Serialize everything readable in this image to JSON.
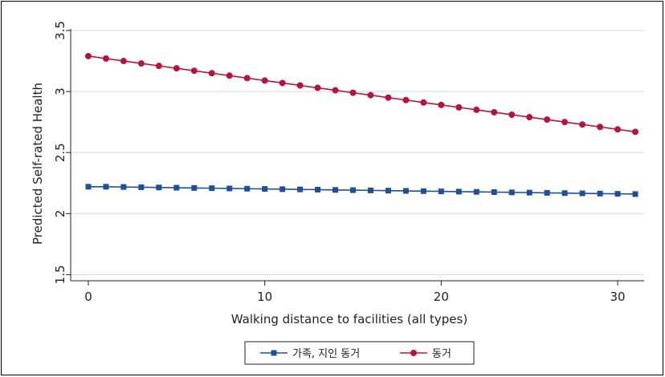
{
  "chart_data": {
    "type": "line",
    "title": "",
    "xlabel": "Walking distance to facilities (all types)",
    "ylabel": "Predicted Self-rated Health",
    "xlim": [
      -1,
      31.5
    ],
    "ylim": [
      1.45,
      3.5
    ],
    "x_ticks": [
      0,
      10,
      20,
      30
    ],
    "x_tick_labels": [
      "0",
      "10",
      "20",
      "30"
    ],
    "y_ticks": [
      1.5,
      2,
      2.5,
      3,
      3.5
    ],
    "y_tick_labels": [
      "1.5",
      "2",
      "2.5",
      "3",
      "3.5"
    ],
    "grid": true,
    "legend_position": "bottom",
    "x": [
      0,
      1,
      2,
      3,
      4,
      5,
      6,
      7,
      8,
      9,
      10,
      11,
      12,
      13,
      14,
      15,
      16,
      17,
      18,
      19,
      20,
      21,
      22,
      23,
      24,
      25,
      26,
      27,
      28,
      29,
      30,
      31
    ],
    "series": [
      {
        "name": "가족, 지인 동거",
        "color": "#1f4e9c",
        "marker": "square",
        "values": [
          2.22,
          2.22,
          2.218,
          2.216,
          2.214,
          2.212,
          2.21,
          2.208,
          2.206,
          2.204,
          2.202,
          2.2,
          2.198,
          2.196,
          2.194,
          2.192,
          2.19,
          2.188,
          2.186,
          2.184,
          2.182,
          2.18,
          2.178,
          2.176,
          2.174,
          2.172,
          2.17,
          2.168,
          2.166,
          2.164,
          2.162,
          2.16
        ]
      },
      {
        "name": "동거",
        "color": "#b8143a",
        "marker": "circle",
        "values": [
          3.29,
          3.27,
          3.25,
          3.23,
          3.21,
          3.19,
          3.17,
          3.15,
          3.13,
          3.11,
          3.09,
          3.07,
          3.05,
          3.03,
          3.01,
          2.99,
          2.97,
          2.95,
          2.93,
          2.91,
          2.89,
          2.87,
          2.85,
          2.83,
          2.81,
          2.79,
          2.77,
          2.75,
          2.73,
          2.71,
          2.69,
          2.67
        ]
      }
    ]
  }
}
